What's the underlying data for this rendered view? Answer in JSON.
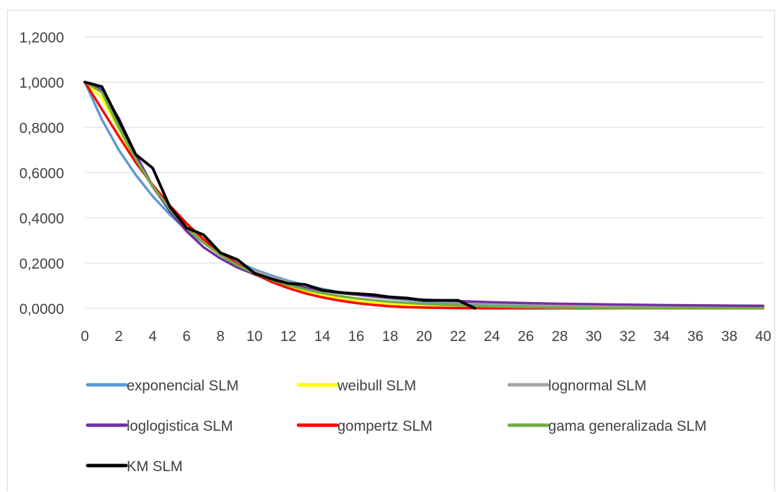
{
  "chart_data": {
    "type": "line",
    "title": "",
    "xlabel": "",
    "ylabel": "",
    "xlim": [
      0,
      40
    ],
    "ylim": [
      0,
      1.2
    ],
    "x_ticks": [
      "0",
      "2",
      "4",
      "6",
      "8",
      "10",
      "12",
      "14",
      "16",
      "18",
      "20",
      "22",
      "24",
      "26",
      "28",
      "30",
      "32",
      "34",
      "36",
      "38",
      "40"
    ],
    "y_ticks": [
      "0,0000",
      "0,2000",
      "0,4000",
      "0,6000",
      "0,8000",
      "1,0000",
      "1,2000"
    ],
    "grid": "horizontal",
    "legend_position": "bottom",
    "series": [
      {
        "name": "exponencial SLM",
        "color": "#5b9bd5",
        "x": [
          0,
          1,
          2,
          3,
          4,
          5,
          6,
          7,
          8,
          9,
          10,
          11,
          12,
          13,
          14,
          15,
          16,
          17,
          18,
          19,
          20,
          22,
          24,
          26,
          28,
          30,
          32,
          34,
          36,
          38,
          40
        ],
        "y": [
          1.0,
          0.835,
          0.7,
          0.59,
          0.495,
          0.415,
          0.345,
          0.29,
          0.245,
          0.205,
          0.172,
          0.145,
          0.122,
          0.102,
          0.086,
          0.072,
          0.061,
          0.051,
          0.043,
          0.036,
          0.03,
          0.021,
          0.015,
          0.011,
          0.008,
          0.006,
          0.004,
          0.003,
          0.002,
          0.0015,
          0.001
        ]
      },
      {
        "name": "weibull SLM",
        "color": "#ffff00",
        "x": [
          0,
          1,
          2,
          3,
          4,
          5,
          6,
          7,
          8,
          9,
          10,
          11,
          12,
          13,
          14,
          15,
          16,
          17,
          18,
          19,
          20,
          22,
          24,
          26,
          28,
          30,
          32,
          34,
          36,
          38,
          40
        ],
        "y": [
          1.0,
          0.93,
          0.79,
          0.655,
          0.54,
          0.44,
          0.36,
          0.29,
          0.235,
          0.19,
          0.152,
          0.12,
          0.094,
          0.073,
          0.056,
          0.043,
          0.032,
          0.024,
          0.018,
          0.013,
          0.01,
          0.005,
          0.002,
          0.001,
          0.0005,
          0.0002,
          0.0001,
          0,
          0,
          0,
          0
        ]
      },
      {
        "name": "lognormal SLM",
        "color": "#a5a5a5",
        "x": [
          0,
          1,
          2,
          3,
          4,
          5,
          6,
          7,
          8,
          9,
          10,
          11,
          12,
          13,
          14,
          15,
          16,
          17,
          18,
          19,
          20,
          22,
          24,
          26,
          28,
          30,
          32,
          34,
          36,
          38,
          40
        ],
        "y": [
          1.0,
          0.965,
          0.81,
          0.66,
          0.535,
          0.435,
          0.355,
          0.29,
          0.24,
          0.198,
          0.165,
          0.138,
          0.116,
          0.098,
          0.083,
          0.071,
          0.061,
          0.053,
          0.046,
          0.04,
          0.035,
          0.027,
          0.021,
          0.017,
          0.014,
          0.011,
          0.009,
          0.008,
          0.007,
          0.006,
          0.005
        ]
      },
      {
        "name": "loglogistica SLM",
        "color": "#7030a0",
        "x": [
          0,
          1,
          2,
          3,
          4,
          5,
          6,
          7,
          8,
          9,
          10,
          11,
          12,
          13,
          14,
          15,
          16,
          17,
          18,
          19,
          20,
          22,
          24,
          26,
          28,
          30,
          32,
          34,
          36,
          38,
          40
        ],
        "y": [
          1.0,
          0.965,
          0.84,
          0.68,
          0.54,
          0.43,
          0.34,
          0.27,
          0.22,
          0.18,
          0.15,
          0.125,
          0.105,
          0.09,
          0.078,
          0.068,
          0.06,
          0.053,
          0.047,
          0.042,
          0.038,
          0.032,
          0.027,
          0.023,
          0.02,
          0.018,
          0.016,
          0.014,
          0.013,
          0.012,
          0.011
        ]
      },
      {
        "name": "gompertz SLM",
        "color": "#ff0000",
        "x": [
          0,
          1,
          2,
          3,
          4,
          5,
          6,
          7,
          8,
          9,
          10,
          11,
          12,
          13,
          14,
          15,
          16,
          17,
          18,
          19,
          20,
          22,
          24,
          26,
          28,
          30,
          32,
          34,
          36,
          38,
          40
        ],
        "y": [
          1.0,
          0.88,
          0.76,
          0.645,
          0.545,
          0.455,
          0.375,
          0.305,
          0.245,
          0.195,
          0.152,
          0.117,
          0.089,
          0.066,
          0.048,
          0.034,
          0.023,
          0.015,
          0.009,
          0.005,
          0.003,
          0.001,
          0,
          0,
          0,
          0,
          0,
          0,
          0,
          0,
          0
        ]
      },
      {
        "name": "gama generalizada SLM",
        "color": "#70ad47",
        "x": [
          0,
          1,
          2,
          3,
          4,
          5,
          6,
          7,
          8,
          9,
          10,
          11,
          12,
          13,
          14,
          15,
          16,
          17,
          18,
          19,
          20,
          22,
          24,
          26,
          28,
          30,
          32,
          34,
          36,
          38,
          40
        ],
        "y": [
          1.0,
          0.955,
          0.8,
          0.66,
          0.54,
          0.44,
          0.355,
          0.29,
          0.235,
          0.19,
          0.155,
          0.126,
          0.102,
          0.083,
          0.067,
          0.054,
          0.044,
          0.036,
          0.029,
          0.024,
          0.019,
          0.013,
          0.008,
          0.005,
          0.003,
          0.002,
          0.001,
          0.001,
          0,
          0,
          0
        ]
      },
      {
        "name": "KM SLM",
        "color": "#000000",
        "x": [
          0,
          1,
          2,
          3,
          4,
          5,
          6,
          7,
          8,
          9,
          10,
          11,
          12,
          13,
          14,
          15,
          16,
          17,
          18,
          19,
          20,
          21,
          22,
          23
        ],
        "y": [
          1.0,
          0.98,
          0.83,
          0.68,
          0.62,
          0.45,
          0.355,
          0.325,
          0.245,
          0.215,
          0.155,
          0.13,
          0.11,
          0.105,
          0.08,
          0.07,
          0.065,
          0.06,
          0.05,
          0.045,
          0.035,
          0.035,
          0.035,
          0.0
        ]
      }
    ]
  }
}
